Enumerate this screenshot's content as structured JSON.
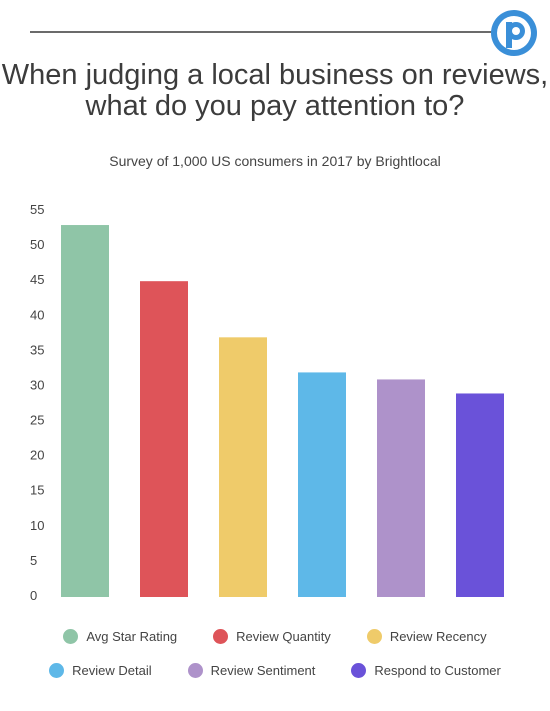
{
  "header": {
    "title": "When judging a local business on reviews, what do you pay attention to?",
    "subtitle": "Survey of 1,000 US consumers in 2017  by Brightlocal",
    "logo_color": "#3a8fd8",
    "logo_icon": "brand-p-logo"
  },
  "chart_data": {
    "type": "bar",
    "categories": [
      "Avg Star Rating",
      "Review Quantity",
      "Review Recency",
      "Review Detail",
      "Review Sentiment",
      "Respond to Customer"
    ],
    "values": [
      53,
      45,
      37,
      32,
      31,
      29
    ],
    "colors": [
      "#8fc5a7",
      "#de5459",
      "#efcb6a",
      "#5eb8e8",
      "#ae92ca",
      "#6a52d9"
    ],
    "title": "When judging a local business on reviews, what do you pay attention to?",
    "subtitle": "Survey of 1,000 US consumers in 2017  by Brightlocal",
    "xlabel": "",
    "ylabel": "",
    "ylim": [
      0,
      55
    ],
    "yticks": [
      0,
      5,
      10,
      15,
      20,
      25,
      30,
      35,
      40,
      45,
      50,
      55
    ],
    "grid": false,
    "legend": "bottom"
  }
}
